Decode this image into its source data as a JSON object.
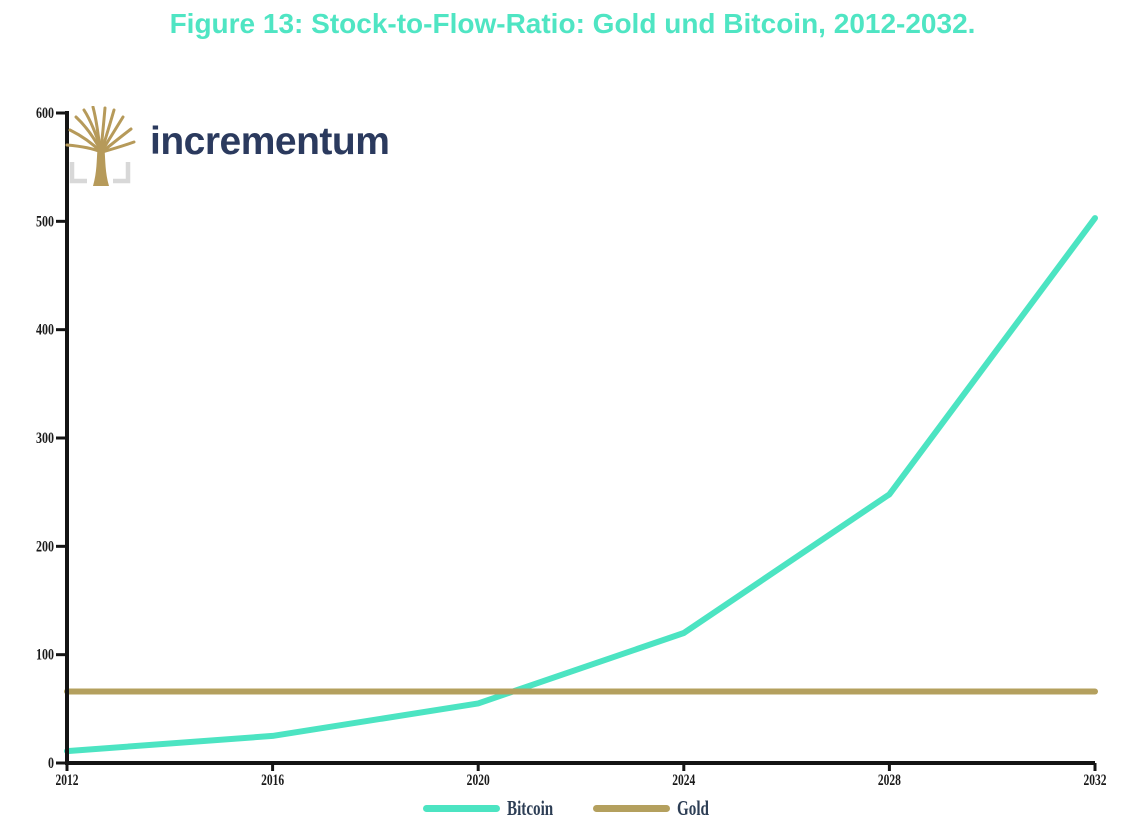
{
  "title": "Figure 13: Stock-to-Flow-Ratio: Gold und Bitcoin, 2012-2032.",
  "logo": {
    "text": "incrementum"
  },
  "colors": {
    "title_text": "#4fe5c3",
    "bitcoin_line": "#4ce4c2",
    "gold_line": "#b4a05e",
    "legend_text": "#2d3e55",
    "logo_navy": "#2b3a5e",
    "logo_gold": "#b69a5a",
    "logo_bracket": "#d8d8d8",
    "axis": "#141414"
  },
  "chart_data": {
    "type": "line",
    "title": "Figure 13: Stock-to-Flow-Ratio: Gold und Bitcoin, 2012-2032.",
    "x": [
      2012,
      2016,
      2020,
      2024,
      2028,
      2032
    ],
    "series": [
      {
        "name": "Bitcoin",
        "color": "#4ce4c2",
        "values": [
          11,
          25,
          55,
          120,
          248,
          503
        ]
      },
      {
        "name": "Gold",
        "color": "#b4a05e",
        "values": [
          66,
          66,
          66,
          66,
          66,
          66
        ]
      }
    ],
    "xlabel": "",
    "ylabel": "",
    "xlim": [
      2012,
      2032
    ],
    "ylim": [
      0,
      600
    ],
    "xticks": [
      2012,
      2016,
      2020,
      2024,
      2028,
      2032
    ],
    "yticks": [
      0,
      100,
      200,
      300,
      400,
      500,
      600
    ],
    "grid": false,
    "legend_position": "bottom"
  },
  "legend": {
    "items": [
      {
        "label": "Bitcoin",
        "color": "#4ce4c2"
      },
      {
        "label": "Gold",
        "color": "#b4a05e"
      }
    ]
  }
}
